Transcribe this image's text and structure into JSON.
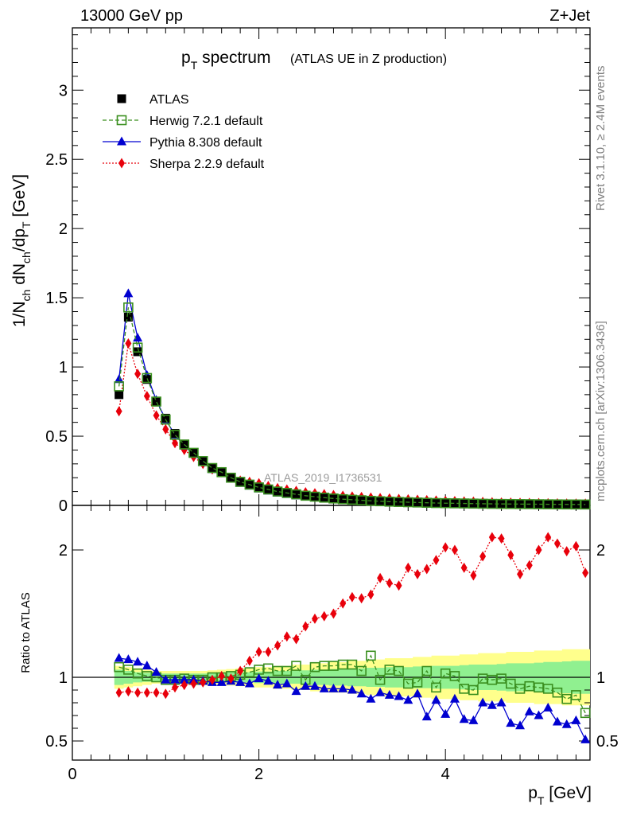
{
  "header": {
    "left": "13000 GeV pp",
    "right": "Z+Jet"
  },
  "title": {
    "main": "p",
    "main_sub": "T",
    "main_rest": " spectrum",
    "sub": "(ATLAS UE in Z production)"
  },
  "side_texts": {
    "rivet": "Rivet 3.1.10, ≥ 2.4M events",
    "mcplots": "mcplots.cern.ch [arXiv:1306.3436]"
  },
  "watermark": "ATLAS_2019_I1736531",
  "axes": {
    "xlabel_main": "p",
    "xlabel_sub": "T",
    "xlabel_rest": " [GeV]",
    "ylabel_top": "1/N",
    "ylabel_top_full": "1/N_ch dN_ch/dp_T [GeV]",
    "ylabel_bottom": "Ratio to ATLAS",
    "top_yticks": [
      "0",
      "0.5",
      "1",
      "1.5",
      "2",
      "2.5",
      "3"
    ],
    "bottom_yticks": [
      "0.5",
      "1",
      "2"
    ],
    "xticks": [
      "0",
      "2",
      "4"
    ]
  },
  "legend": [
    {
      "name": "ATLAS",
      "color": "#000000",
      "marker": "square-filled"
    },
    {
      "name": "Herwig 7.2.1 default",
      "color": "#3a8f1f",
      "marker": "square-open"
    },
    {
      "name": "Pythia 8.308 default",
      "color": "#0000d0",
      "marker": "triangle"
    },
    {
      "name": "Sherpa 2.2.9 default",
      "color": "#e8000b",
      "marker": "diamond"
    }
  ],
  "chart_data": [
    {
      "type": "line",
      "panel": "main",
      "xlim": [
        0,
        5.55
      ],
      "ylim": [
        0,
        3.45
      ],
      "x": [
        0.5,
        0.6,
        0.7,
        0.8,
        0.9,
        1.0,
        1.1,
        1.2,
        1.3,
        1.4,
        1.5,
        1.6,
        1.7,
        1.8,
        1.9,
        2.0,
        2.1,
        2.2,
        2.3,
        2.4,
        2.5,
        2.6,
        2.7,
        2.8,
        2.9,
        3.0,
        3.1,
        3.2,
        3.3,
        3.4,
        3.5,
        3.6,
        3.7,
        3.8,
        3.9,
        4.0,
        4.1,
        4.2,
        4.3,
        4.4,
        4.5,
        4.6,
        4.7,
        4.8,
        4.9,
        5.0,
        5.1,
        5.2,
        5.3,
        5.4,
        5.5
      ],
      "series": [
        {
          "name": "ATLAS",
          "values": [
            0.8,
            1.36,
            1.11,
            0.91,
            0.75,
            0.63,
            0.52,
            0.44,
            0.38,
            0.32,
            0.27,
            0.24,
            0.2,
            0.17,
            0.15,
            0.13,
            0.115,
            0.1,
            0.09,
            0.08,
            0.07,
            0.063,
            0.056,
            0.05,
            0.045,
            0.041,
            0.037,
            0.033,
            0.03,
            0.027,
            0.025,
            0.023,
            0.021,
            0.019,
            0.017,
            0.016,
            0.015,
            0.014,
            0.013,
            0.012,
            0.011,
            0.0105,
            0.01,
            0.0095,
            0.009,
            0.0085,
            0.008,
            0.0075,
            0.007,
            0.0068,
            0.0065
          ]
        },
        {
          "name": "Herwig 7.2.1 default",
          "values": [
            0.86,
            1.43,
            1.14,
            0.92,
            0.75,
            0.62,
            0.51,
            0.44,
            0.38,
            0.32,
            0.27,
            0.24,
            0.2,
            0.17,
            0.15,
            0.13,
            0.115,
            0.1,
            0.09,
            0.08,
            0.07,
            0.063,
            0.056,
            0.05,
            0.045,
            0.041,
            0.037,
            0.033,
            0.03,
            0.027,
            0.025,
            0.023,
            0.021,
            0.019,
            0.017,
            0.016,
            0.015,
            0.014,
            0.013,
            0.012,
            0.011,
            0.0105,
            0.01,
            0.0095,
            0.009,
            0.0085,
            0.008,
            0.0075,
            0.007,
            0.0068,
            0.0065
          ]
        },
        {
          "name": "Pythia 8.308 default",
          "values": [
            0.91,
            1.53,
            1.21,
            0.94,
            0.76,
            0.62,
            0.51,
            0.43,
            0.37,
            0.31,
            0.26,
            0.23,
            0.19,
            0.16,
            0.14,
            0.12,
            0.105,
            0.09,
            0.08,
            0.07,
            0.061,
            0.055,
            0.049,
            0.044,
            0.04,
            0.036,
            0.033,
            0.029,
            0.026,
            0.023,
            0.021,
            0.019,
            0.017,
            0.015,
            0.013,
            0.012,
            0.011,
            0.01,
            0.009,
            0.008,
            0.0075,
            0.007,
            0.0065,
            0.006,
            0.0055,
            0.005,
            0.0048,
            0.0045,
            0.0043,
            0.004,
            0.0035
          ]
        },
        {
          "name": "Sherpa 2.2.9 default",
          "values": [
            0.68,
            1.17,
            0.95,
            0.79,
            0.65,
            0.55,
            0.45,
            0.4,
            0.35,
            0.3,
            0.26,
            0.24,
            0.2,
            0.18,
            0.17,
            0.16,
            0.14,
            0.125,
            0.115,
            0.105,
            0.095,
            0.088,
            0.081,
            0.075,
            0.07,
            0.065,
            0.061,
            0.057,
            0.053,
            0.05,
            0.047,
            0.044,
            0.041,
            0.038,
            0.035,
            0.033,
            0.031,
            0.029,
            0.027,
            0.025,
            0.023,
            0.021,
            0.02,
            0.019,
            0.018,
            0.017,
            0.016,
            0.015,
            0.014,
            0.0135,
            0.013
          ]
        }
      ]
    },
    {
      "type": "line",
      "panel": "ratio",
      "ylabel": "Ratio to ATLAS",
      "xlim": [
        0,
        5.55
      ],
      "ylim": [
        0.35,
        2.35
      ],
      "x": [
        0.5,
        0.6,
        0.7,
        0.8,
        0.9,
        1.0,
        1.1,
        1.2,
        1.3,
        1.4,
        1.5,
        1.6,
        1.7,
        1.8,
        1.9,
        2.0,
        2.1,
        2.2,
        2.3,
        2.4,
        2.5,
        2.6,
        2.7,
        2.8,
        2.9,
        3.0,
        3.1,
        3.2,
        3.3,
        3.4,
        3.5,
        3.6,
        3.7,
        3.8,
        3.9,
        4.0,
        4.1,
        4.2,
        4.3,
        4.4,
        4.5,
        4.6,
        4.7,
        4.8,
        4.9,
        5.0,
        5.1,
        5.2,
        5.3,
        5.4,
        5.5
      ],
      "band_inner": [
        0.06,
        0.05,
        0.04,
        0.035,
        0.03,
        0.03,
        0.03,
        0.03,
        0.03,
        0.03,
        0.035,
        0.035,
        0.04,
        0.04,
        0.04,
        0.045,
        0.045,
        0.05,
        0.05,
        0.05,
        0.055,
        0.06,
        0.06,
        0.065,
        0.065,
        0.07,
        0.07,
        0.075,
        0.075,
        0.08,
        0.08,
        0.08,
        0.085,
        0.085,
        0.09,
        0.09,
        0.09,
        0.095,
        0.1,
        0.1,
        0.1,
        0.105,
        0.11,
        0.11,
        0.11,
        0.115,
        0.12,
        0.12,
        0.125,
        0.13,
        0.13
      ],
      "band_outer": [
        0.09,
        0.08,
        0.07,
        0.06,
        0.05,
        0.05,
        0.05,
        0.05,
        0.05,
        0.05,
        0.055,
        0.06,
        0.065,
        0.07,
        0.07,
        0.08,
        0.08,
        0.09,
        0.09,
        0.1,
        0.1,
        0.11,
        0.11,
        0.12,
        0.12,
        0.13,
        0.13,
        0.14,
        0.14,
        0.15,
        0.15,
        0.15,
        0.16,
        0.16,
        0.17,
        0.17,
        0.17,
        0.18,
        0.18,
        0.19,
        0.19,
        0.19,
        0.2,
        0.2,
        0.2,
        0.21,
        0.21,
        0.21,
        0.22,
        0.22,
        0.22
      ],
      "series": [
        {
          "name": "Herwig 7.2.1 default",
          "values": [
            1.08,
            1.06,
            1.03,
            1.01,
            1.0,
            0.98,
            0.98,
            0.99,
            0.98,
            0.98,
            1.0,
            1.0,
            1.01,
            1.02,
            1.04,
            1.06,
            1.07,
            1.05,
            1.05,
            1.09,
            0.98,
            1.08,
            1.09,
            1.09,
            1.1,
            1.1,
            1.05,
            1.17,
            0.98,
            1.06,
            1.05,
            0.95,
            0.96,
            1.05,
            0.92,
            1.03,
            1.01,
            0.91,
            0.9,
            0.99,
            0.98,
            0.99,
            0.95,
            0.91,
            0.93,
            0.92,
            0.91,
            0.88,
            0.83,
            0.86,
            0.72
          ]
        },
        {
          "name": "Pythia 8.308 default",
          "values": [
            1.15,
            1.14,
            1.12,
            1.09,
            1.04,
            0.98,
            0.98,
            0.98,
            0.98,
            0.97,
            0.96,
            0.96,
            0.97,
            0.96,
            0.95,
            0.99,
            0.97,
            0.94,
            0.95,
            0.89,
            0.93,
            0.93,
            0.91,
            0.91,
            0.91,
            0.9,
            0.87,
            0.83,
            0.88,
            0.86,
            0.85,
            0.82,
            0.87,
            0.69,
            0.82,
            0.71,
            0.83,
            0.67,
            0.66,
            0.8,
            0.78,
            0.8,
            0.64,
            0.62,
            0.73,
            0.7,
            0.76,
            0.65,
            0.63,
            0.66,
            0.51
          ]
        },
        {
          "name": "Sherpa 2.2.9 default",
          "values": [
            0.88,
            0.89,
            0.88,
            0.88,
            0.88,
            0.87,
            0.92,
            0.94,
            0.95,
            0.96,
            0.98,
            1.01,
            0.99,
            1.05,
            1.13,
            1.2,
            1.2,
            1.25,
            1.32,
            1.3,
            1.4,
            1.46,
            1.48,
            1.5,
            1.58,
            1.63,
            1.62,
            1.65,
            1.78,
            1.74,
            1.72,
            1.86,
            1.81,
            1.85,
            1.92,
            2.02,
            2.0,
            1.86,
            1.8,
            1.95,
            2.1,
            2.09,
            1.96,
            1.81,
            1.88,
            2.0,
            2.1,
            2.05,
            1.99,
            2.03,
            1.82
          ]
        }
      ]
    }
  ]
}
